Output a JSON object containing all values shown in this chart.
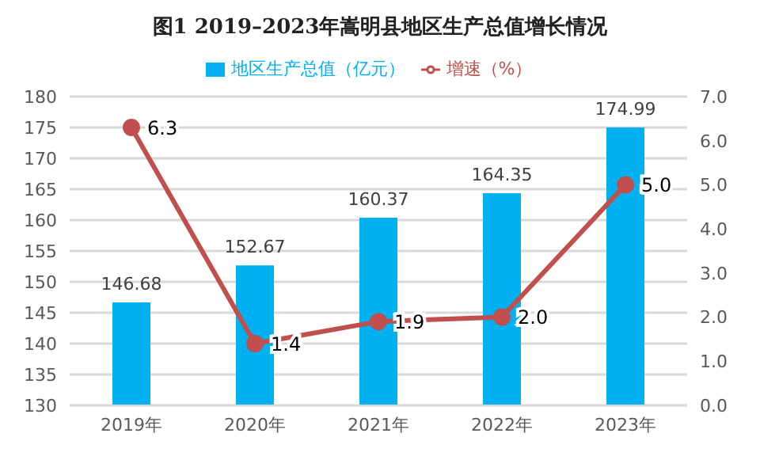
{
  "chart_data": {
    "type": "bar",
    "title": "图1  2019–2023年嵩明县地区生产总值增长情况",
    "categories": [
      "2019年",
      "2020年",
      "2021年",
      "2022年",
      "2023年"
    ],
    "series": [
      {
        "name": "地区生产总值（亿元）",
        "color": "#00b0f0",
        "values": [
          146.68,
          152.67,
          160.37,
          164.35,
          174.99
        ],
        "value_labels": [
          "146.68",
          "152.67",
          "160.37",
          "164.35",
          "174.99"
        ]
      },
      {
        "name": "增速（%）",
        "type": "line",
        "axis": "y2",
        "color": "#c0504d",
        "values": [
          6.3,
          1.4,
          1.9,
          2.0,
          5.0
        ],
        "value_labels": [
          "6.3",
          "1.4",
          "1.9",
          "2.0",
          "5.0"
        ]
      }
    ],
    "ylim": [
      130,
      180
    ],
    "yticks": [
      130,
      135,
      140,
      145,
      150,
      155,
      160,
      165,
      170,
      175,
      180
    ],
    "y2lim": [
      0,
      7
    ],
    "y2ticks": [
      {
        "value": 0,
        "label": "0.0"
      },
      {
        "value": 1,
        "label": "1.0"
      },
      {
        "value": 2,
        "label": "2.0"
      },
      {
        "value": 3,
        "label": "3.0"
      },
      {
        "value": 4,
        "label": "4.0"
      },
      {
        "value": 5,
        "label": "5.0"
      },
      {
        "value": 6,
        "label": "6.0"
      },
      {
        "value": 7,
        "label": "7.0"
      }
    ],
    "grid": "y",
    "legend": "top",
    "marker": "circle",
    "line_style": "solid"
  }
}
